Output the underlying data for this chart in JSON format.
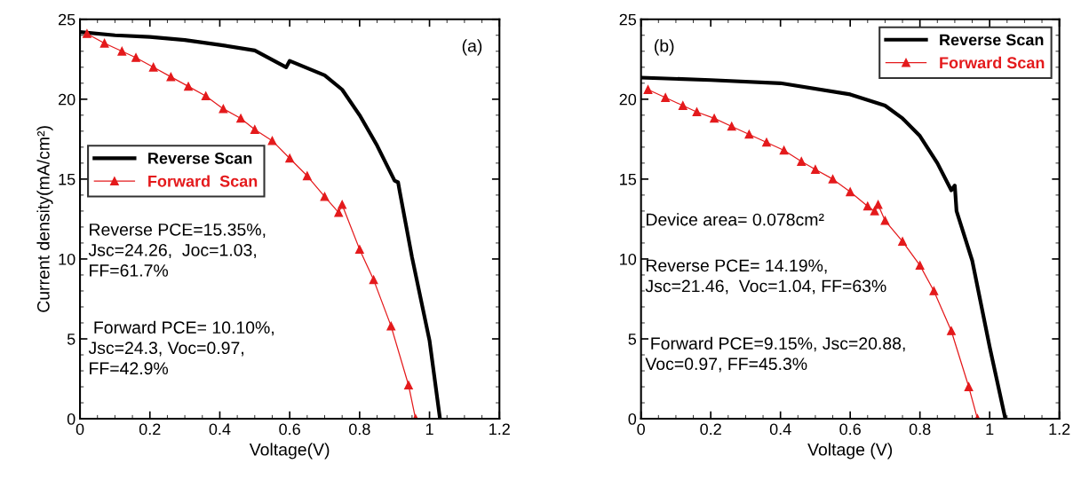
{
  "chart_data": [
    {
      "type": "line",
      "xlabel": "Voltage(V)",
      "ylabel": "Current density(mA/cm²)",
      "xlim": [
        0,
        1.2
      ],
      "ylim": [
        0,
        25
      ],
      "xticks": [
        0,
        0.2,
        0.4,
        0.6,
        0.8,
        1,
        1.2
      ],
      "yticks": [
        0,
        5,
        10,
        15,
        20,
        25
      ],
      "grid": false,
      "legend": "left",
      "annotations": [
        "(a)",
        "Reverse PCE=15.35%,\nJsc=24.26,  Joc=1.03,\nFF=61.7%",
        " Forward PCE= 10.10%,\nJsc=24.3, Voc=0.97,\nFF=42.9%"
      ],
      "series": [
        {
          "name": "Reverse Scan",
          "color": "#000000",
          "marker": "none",
          "x": [
            0,
            0.1,
            0.2,
            0.3,
            0.4,
            0.5,
            0.59,
            0.6,
            0.7,
            0.75,
            0.8,
            0.85,
            0.9,
            0.91,
            0.915,
            0.95,
            1.0,
            1.03
          ],
          "values": [
            24.2,
            24.0,
            23.9,
            23.7,
            23.4,
            23.05,
            22.0,
            22.4,
            21.5,
            20.6,
            19.0,
            17.1,
            14.9,
            14.8,
            14.2,
            10.1,
            4.9,
            0
          ]
        },
        {
          "name": "Forward  Scan",
          "color": "#e41a1c",
          "marker": "triangle",
          "x": [
            0.02,
            0.07,
            0.12,
            0.16,
            0.21,
            0.26,
            0.31,
            0.36,
            0.41,
            0.46,
            0.5,
            0.55,
            0.6,
            0.65,
            0.7,
            0.74,
            0.75,
            0.8,
            0.84,
            0.89,
            0.94,
            0.96
          ],
          "values": [
            24.1,
            23.5,
            23.0,
            22.6,
            22.0,
            21.4,
            20.8,
            20.2,
            19.4,
            18.8,
            18.1,
            17.4,
            16.3,
            15.2,
            13.9,
            12.9,
            13.4,
            10.6,
            8.7,
            5.8,
            2.1,
            0
          ]
        }
      ]
    },
    {
      "type": "line",
      "xlabel": "Voltage (V)",
      "xlim": [
        0,
        1.2
      ],
      "ylim": [
        0,
        25
      ],
      "xticks": [
        0,
        0.2,
        0.4,
        0.6,
        0.8,
        1,
        1.2
      ],
      "yticks": [
        0,
        5,
        10,
        15,
        20,
        25
      ],
      "grid": false,
      "legend": "top right",
      "annotations": [
        "(b)",
        "Device area= 0.078cm²",
        "Reverse PCE= 14.19%,\nJsc=21.46,  Voc=1.04, FF=63%",
        " Forward PCE=9.15%, Jsc=20.88,\nVoc=0.97, FF=45.3%"
      ],
      "series": [
        {
          "name": "Reverse Scan",
          "color": "#000000",
          "marker": "none",
          "x": [
            0,
            0.2,
            0.4,
            0.6,
            0.7,
            0.75,
            0.8,
            0.85,
            0.89,
            0.9,
            0.905,
            0.95,
            1.0,
            1.045
          ],
          "values": [
            21.35,
            21.2,
            21.0,
            20.3,
            19.6,
            18.8,
            17.7,
            16.0,
            14.3,
            14.6,
            13.0,
            9.9,
            4.5,
            0
          ]
        },
        {
          "name": "Forward Scan",
          "color": "#e41a1c",
          "marker": "triangle",
          "x": [
            0.02,
            0.07,
            0.12,
            0.16,
            0.21,
            0.26,
            0.31,
            0.36,
            0.41,
            0.46,
            0.5,
            0.55,
            0.6,
            0.65,
            0.67,
            0.68,
            0.7,
            0.75,
            0.8,
            0.84,
            0.89,
            0.94,
            0.965
          ],
          "values": [
            20.6,
            20.1,
            19.6,
            19.2,
            18.8,
            18.3,
            17.8,
            17.3,
            16.8,
            16.1,
            15.6,
            15.0,
            14.2,
            13.3,
            13.0,
            13.4,
            12.4,
            11.1,
            9.6,
            8.0,
            5.5,
            2.0,
            0
          ]
        }
      ]
    }
  ]
}
